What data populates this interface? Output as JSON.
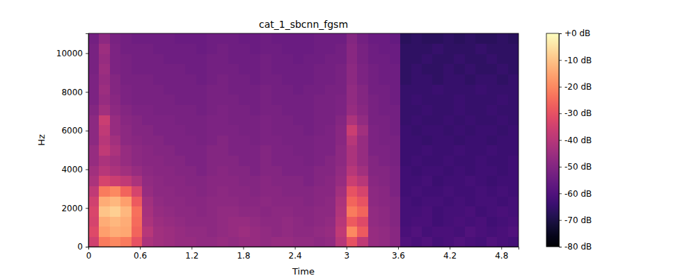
{
  "chart_data": {
    "type": "heatmap",
    "title": "cat_1_sbcnn_fgsm",
    "x_label": "Time",
    "y_label": "Hz",
    "xlim": [
      0,
      5
    ],
    "ylim": [
      0,
      11025
    ],
    "xticks": [
      0,
      0.6,
      1.2,
      1.8,
      2.4,
      3,
      3.6,
      4.2,
      4.8
    ],
    "yticks": [
      0,
      2000,
      4000,
      6000,
      8000,
      10000
    ],
    "color": "magma",
    "cells": [
      [
        -35,
        -22,
        -20,
        -22,
        -30,
        -42,
        -44,
        -45,
        -46,
        -46,
        -47,
        -47,
        -46,
        -47,
        -46,
        -46,
        -47,
        -46,
        -46,
        -47,
        -47,
        -48,
        -47,
        -40,
        -30,
        -38,
        -46,
        -47,
        -49,
        -60,
        -61,
        -60,
        -62,
        -61,
        -60,
        -61,
        -62,
        -60,
        -61,
        -62
      ],
      [
        -32,
        -16,
        -14,
        -15,
        -26,
        -40,
        -44,
        -45,
        -46,
        -47,
        -47,
        -48,
        -47,
        -46,
        -45,
        -46,
        -47,
        -48,
        -47,
        -48,
        -48,
        -47,
        -46,
        -38,
        -20,
        -28,
        -46,
        -47,
        -49,
        -61,
        -60,
        -62,
        -61,
        -61,
        -62,
        -60,
        -61,
        -62,
        -61,
        -60
      ],
      [
        -34,
        -14,
        -12,
        -14,
        -25,
        -42,
        -45,
        -46,
        -47,
        -48,
        -48,
        -48,
        -47,
        -46,
        -46,
        -47,
        -48,
        -48,
        -47,
        -48,
        -49,
        -48,
        -47,
        -40,
        -28,
        -32,
        -47,
        -48,
        -50,
        -62,
        -61,
        -61,
        -63,
        -62,
        -61,
        -62,
        -61,
        -63,
        -62,
        -61
      ],
      [
        -33,
        -10,
        -8,
        -12,
        -24,
        -43,
        -46,
        -47,
        -48,
        -48,
        -49,
        -48,
        -47,
        -47,
        -48,
        -48,
        -49,
        -48,
        -48,
        -49,
        -49,
        -48,
        -48,
        -41,
        -22,
        -26,
        -47,
        -48,
        -50,
        -62,
        -62,
        -61,
        -63,
        -62,
        -62,
        -61,
        -63,
        -62,
        -61,
        -62
      ],
      [
        -35,
        -14,
        -12,
        -16,
        -28,
        -44,
        -47,
        -48,
        -48,
        -49,
        -49,
        -48,
        -48,
        -48,
        -49,
        -49,
        -48,
        -49,
        -49,
        -49,
        -50,
        -49,
        -48,
        -42,
        -26,
        -30,
        -48,
        -49,
        -50,
        -62,
        -63,
        -62,
        -62,
        -63,
        -62,
        -63,
        -62,
        -62,
        -63,
        -62
      ],
      [
        -38,
        -22,
        -20,
        -26,
        -34,
        -46,
        -48,
        -48,
        -49,
        -49,
        -50,
        -49,
        -48,
        -49,
        -49,
        -50,
        -49,
        -49,
        -50,
        -50,
        -50,
        -49,
        -49,
        -44,
        -30,
        -34,
        -48,
        -49,
        -51,
        -63,
        -62,
        -63,
        -63,
        -62,
        -63,
        -63,
        -62,
        -63,
        -62,
        -63
      ],
      [
        -42,
        -34,
        -36,
        -38,
        -42,
        -47,
        -48,
        -49,
        -49,
        -50,
        -50,
        -49,
        -49,
        -49,
        -50,
        -50,
        -49,
        -50,
        -50,
        -50,
        -51,
        -50,
        -49,
        -46,
        -36,
        -40,
        -49,
        -50,
        -51,
        -63,
        -63,
        -62,
        -64,
        -63,
        -63,
        -62,
        -63,
        -64,
        -63,
        -63
      ],
      [
        -44,
        -40,
        -42,
        -44,
        -46,
        -48,
        -49,
        -49,
        -50,
        -50,
        -51,
        -50,
        -49,
        -50,
        -50,
        -51,
        -50,
        -50,
        -51,
        -51,
        -51,
        -50,
        -50,
        -47,
        -40,
        -44,
        -50,
        -50,
        -51,
        -63,
        -64,
        -63,
        -63,
        -64,
        -63,
        -64,
        -63,
        -63,
        -64,
        -63
      ],
      [
        -46,
        -42,
        -44,
        -46,
        -48,
        -49,
        -49,
        -50,
        -50,
        -51,
        -51,
        -50,
        -50,
        -50,
        -51,
        -51,
        -50,
        -51,
        -51,
        -51,
        -52,
        -51,
        -50,
        -48,
        -42,
        -46,
        -50,
        -51,
        -52,
        -64,
        -63,
        -64,
        -64,
        -63,
        -64,
        -64,
        -63,
        -64,
        -64,
        -63
      ],
      [
        -46,
        -38,
        -42,
        -46,
        -48,
        -49,
        -50,
        -50,
        -51,
        -51,
        -51,
        -50,
        -50,
        -51,
        -51,
        -51,
        -50,
        -51,
        -51,
        -52,
        -52,
        -51,
        -51,
        -48,
        -42,
        -46,
        -51,
        -51,
        -52,
        -64,
        -64,
        -63,
        -64,
        -64,
        -63,
        -64,
        -64,
        -63,
        -64,
        -64
      ],
      [
        -48,
        -40,
        -44,
        -48,
        -49,
        -50,
        -50,
        -51,
        -51,
        -51,
        -52,
        -51,
        -50,
        -51,
        -51,
        -52,
        -51,
        -51,
        -52,
        -52,
        -52,
        -51,
        -51,
        -49,
        -40,
        -46,
        -51,
        -52,
        -52,
        -64,
        -64,
        -65,
        -64,
        -64,
        -65,
        -64,
        -64,
        -65,
        -64,
        -64
      ],
      [
        -48,
        -38,
        -46,
        -48,
        -50,
        -50,
        -51,
        -51,
        -51,
        -52,
        -52,
        -51,
        -51,
        -51,
        -52,
        -52,
        -51,
        -52,
        -52,
        -52,
        -53,
        -52,
        -51,
        -49,
        -36,
        -44,
        -51,
        -52,
        -53,
        -64,
        -65,
        -64,
        -64,
        -65,
        -64,
        -65,
        -64,
        -64,
        -65,
        -64
      ],
      [
        -48,
        -36,
        -46,
        -49,
        -50,
        -51,
        -51,
        -51,
        -52,
        -52,
        -52,
        -51,
        -51,
        -52,
        -52,
        -52,
        -51,
        -52,
        -52,
        -53,
        -53,
        -52,
        -52,
        -50,
        -42,
        -47,
        -52,
        -52,
        -53,
        -65,
        -64,
        -65,
        -65,
        -64,
        -65,
        -64,
        -65,
        -65,
        -64,
        -65
      ],
      [
        -50,
        -44,
        -48,
        -50,
        -51,
        -51,
        -52,
        -52,
        -52,
        -52,
        -53,
        -52,
        -51,
        -52,
        -52,
        -53,
        -52,
        -52,
        -53,
        -53,
        -53,
        -52,
        -52,
        -51,
        -46,
        -49,
        -52,
        -53,
        -53,
        -65,
        -65,
        -64,
        -65,
        -65,
        -64,
        -65,
        -65,
        -64,
        -65,
        -65
      ],
      [
        -51,
        -46,
        -49,
        -51,
        -52,
        -52,
        -52,
        -52,
        -53,
        -53,
        -53,
        -52,
        -52,
        -52,
        -53,
        -53,
        -52,
        -53,
        -53,
        -53,
        -53,
        -52,
        -52,
        -51,
        -47,
        -50,
        -52,
        -53,
        -54,
        -65,
        -64,
        -65,
        -65,
        -65,
        -64,
        -65,
        -65,
        -65,
        -64,
        -65
      ],
      [
        -51,
        -45,
        -50,
        -51,
        -52,
        -52,
        -52,
        -53,
        -53,
        -53,
        -53,
        -52,
        -52,
        -53,
        -53,
        -53,
        -52,
        -53,
        -53,
        -54,
        -53,
        -53,
        -52,
        -52,
        -47,
        -50,
        -53,
        -53,
        -54,
        -65,
        -65,
        -65,
        -64,
        -65,
        -65,
        -65,
        -64,
        -65,
        -65,
        -65
      ],
      [
        -51,
        -46,
        -50,
        -52,
        -52,
        -52,
        -53,
        -53,
        -53,
        -53,
        -54,
        -53,
        -52,
        -53,
        -53,
        -54,
        -53,
        -53,
        -54,
        -54,
        -54,
        -53,
        -53,
        -52,
        -48,
        -51,
        -53,
        -54,
        -54,
        -66,
        -65,
        -65,
        -66,
        -65,
        -65,
        -66,
        -65,
        -65,
        -66,
        -65
      ],
      [
        -52,
        -45,
        -51,
        -52,
        -53,
        -53,
        -53,
        -53,
        -53,
        -54,
        -54,
        -53,
        -53,
        -53,
        -54,
        -54,
        -53,
        -54,
        -54,
        -54,
        -54,
        -53,
        -53,
        -52,
        -48,
        -51,
        -53,
        -54,
        -54,
        -66,
        -65,
        -66,
        -66,
        -65,
        -66,
        -65,
        -66,
        -66,
        -65,
        -66
      ],
      [
        -52,
        -46,
        -51,
        -52,
        -53,
        -53,
        -53,
        -54,
        -54,
        -54,
        -54,
        -53,
        -53,
        -54,
        -54,
        -54,
        -53,
        -54,
        -54,
        -55,
        -54,
        -54,
        -53,
        -53,
        -49,
        -52,
        -54,
        -54,
        -55,
        -66,
        -66,
        -65,
        -66,
        -66,
        -65,
        -66,
        -66,
        -65,
        -66,
        -66
      ],
      [
        -52,
        -45,
        -51,
        -53,
        -53,
        -53,
        -54,
        -54,
        -54,
        -54,
        -55,
        -54,
        -53,
        -54,
        -54,
        -55,
        -54,
        -54,
        -55,
        -55,
        -55,
        -54,
        -54,
        -53,
        -49,
        -52,
        -54,
        -55,
        -55,
        -66,
        -66,
        -66,
        -65,
        -66,
        -66,
        -66,
        -65,
        -66,
        -66,
        -66
      ],
      [
        -53,
        -48,
        -52,
        -53,
        -54,
        -54,
        -54,
        -54,
        -55,
        -55,
        -55,
        -54,
        -54,
        -54,
        -55,
        -55,
        -54,
        -55,
        -55,
        -55,
        -55,
        -54,
        -54,
        -54,
        -50,
        -53,
        -55,
        -55,
        -56,
        -67,
        -66,
        -67,
        -67,
        -66,
        -67,
        -66,
        -67,
        -67,
        -66,
        -67
      ]
    ],
    "colorbar": {
      "range": [
        -80,
        0
      ],
      "ticks": [
        {
          "value": -80,
          "label": "-80 dB"
        },
        {
          "value": -70,
          "label": "-70 dB"
        },
        {
          "value": -60,
          "label": "-60 dB"
        },
        {
          "value": -50,
          "label": "-50 dB"
        },
        {
          "value": -40,
          "label": "-40 dB"
        },
        {
          "value": -30,
          "label": "-30 dB"
        },
        {
          "value": -20,
          "label": "-20 dB"
        },
        {
          "value": -10,
          "label": "-10 dB"
        },
        {
          "value": 0,
          "label": "+0 dB"
        }
      ]
    }
  }
}
